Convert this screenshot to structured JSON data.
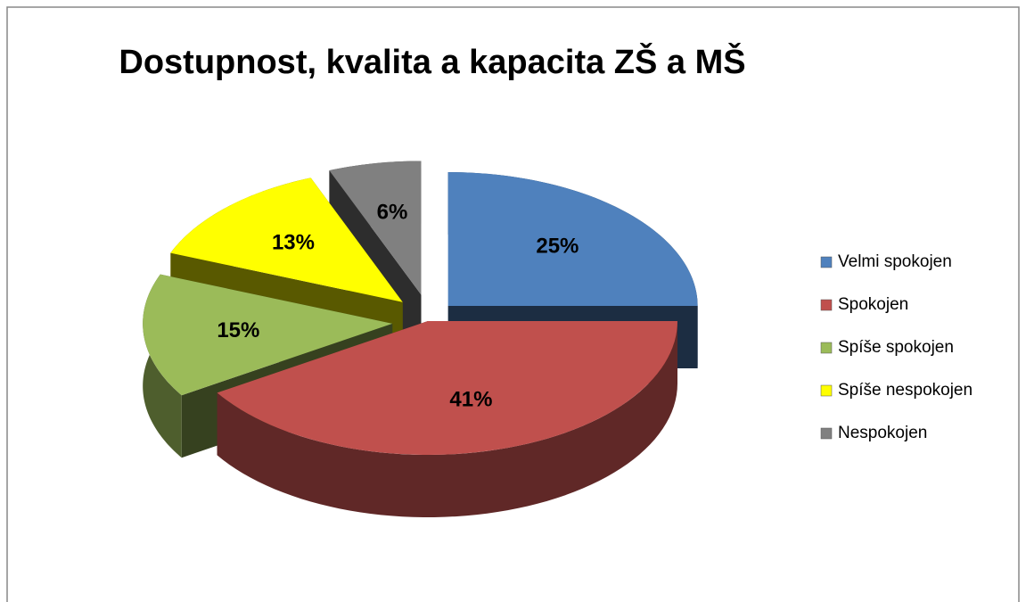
{
  "chart_data": {
    "type": "pie3d",
    "title": "Dostupnost, kvalita a kapacita ZŠ a MŠ",
    "categories": [
      "Velmi spokojen",
      "Spokojen",
      "Spíše spokojen",
      "Spíše nespokojen",
      "Nespokojen"
    ],
    "values": [
      25,
      41,
      15,
      13,
      6
    ],
    "value_labels": [
      "25%",
      "41%",
      "15%",
      "13%",
      "6%"
    ],
    "colors": [
      "#4f81bd",
      "#c0504d",
      "#9bbb59",
      "#ffff00",
      "#808080"
    ],
    "legend": "right"
  }
}
